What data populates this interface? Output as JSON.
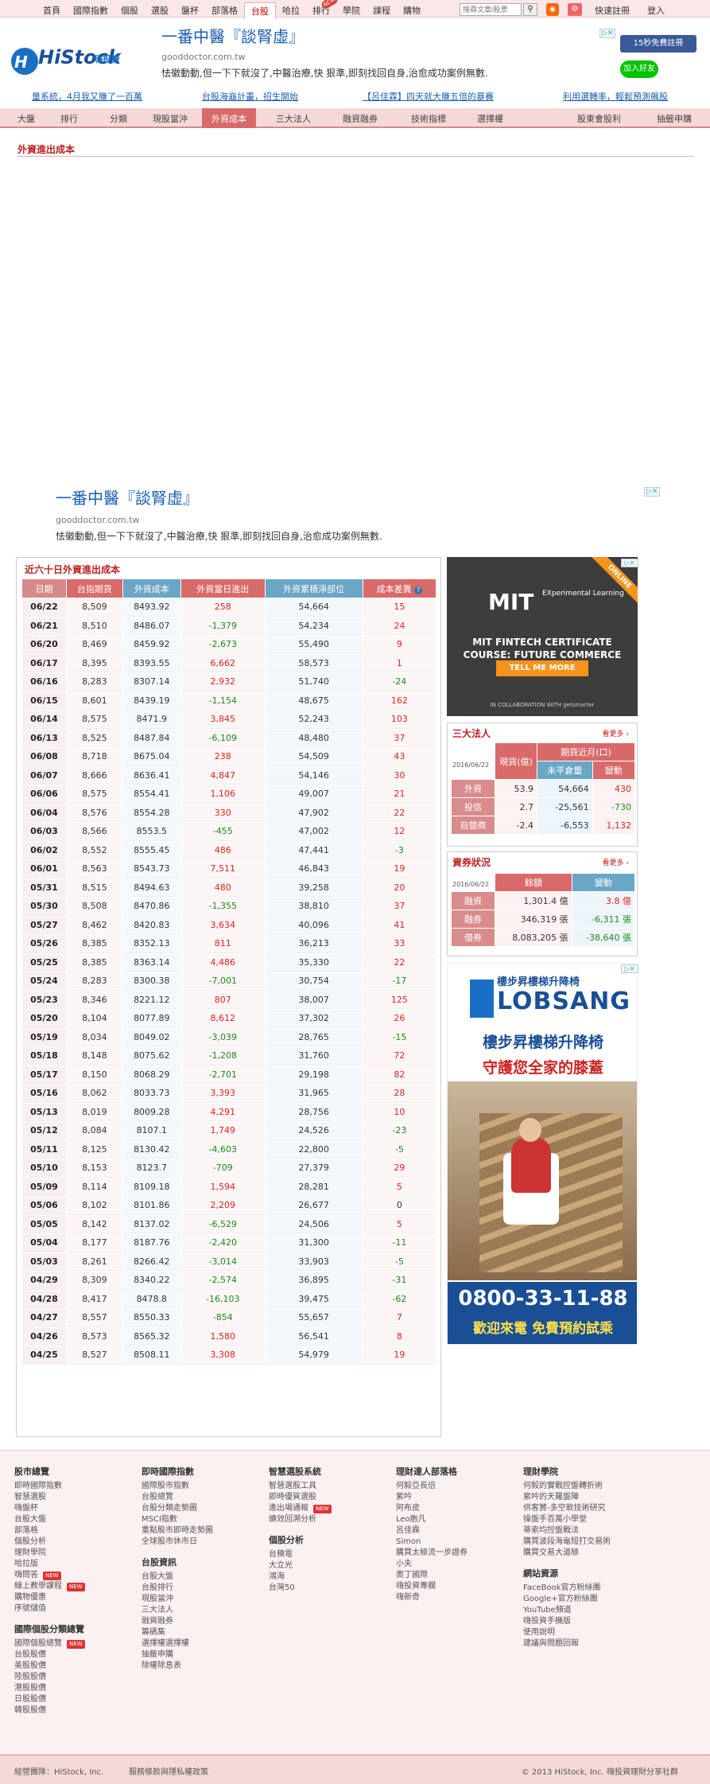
{
  "topnav": {
    "items": [
      "首頁",
      "國際指數",
      "個股",
      "選股",
      "盤杯",
      "部落格",
      "台股",
      "哈拉",
      "排行",
      "學院",
      "課程",
      "購物"
    ],
    "active_index": 6,
    "new_label": "NEW",
    "search_placeholder": "搜尋文章/股票",
    "register": "快速註冊",
    "login": "登入"
  },
  "logo": {
    "name": "HiStock",
    "sub": "嗨投資"
  },
  "ad_top": {
    "headline": "一番中醫『談腎虛』",
    "url": "gooddoctor.com.tw",
    "desc": "怯徽動動,但一下下就沒了,中醫治療,快 狠準,即刻找回自身,治愈成功案例無數."
  },
  "social": {
    "fb": "15秒免費註冊",
    "line": "加入好友"
  },
  "promos": [
    "量系統，4月我又賺了一百萬",
    "台股海龜計畫，招生開始",
    "【呂佳霖】四天就大賺五倍的暴賽",
    "利用選轉率，輕鬆預測飆股"
  ],
  "mainnav": [
    "大盤",
    "排行",
    "分類",
    "現股當沖",
    "外資成本",
    "三大法人",
    "融資融券",
    "技術指標",
    "選擇權",
    "股東會股利",
    "抽籤申購"
  ],
  "mainnav_active": 4,
  "page_title": "外資進出成本",
  "ad_mid": {
    "headline": "一番中醫『談腎虛』",
    "url": "gooddoctor.com.tw",
    "desc": "怯徽動動,但一下下就沒了,中醫治療,快 狠準,即刻找回自身,治愈成功案例無數."
  },
  "table": {
    "caption": "近六十日外資進出成本",
    "headers": [
      "日期",
      "台指期貨",
      "外資成本",
      "外資當日進出",
      "外資累積淨部位",
      "成本差異"
    ],
    "rows": [
      [
        "06/22",
        "8,509",
        "8493.92",
        "258",
        "54,664",
        "15"
      ],
      [
        "06/21",
        "8,510",
        "8486.07",
        "-1,379",
        "54,234",
        "24"
      ],
      [
        "06/20",
        "8,469",
        "8459.92",
        "-2,673",
        "55,490",
        "9"
      ],
      [
        "06/17",
        "8,395",
        "8393.55",
        "6,662",
        "58,573",
        "1"
      ],
      [
        "06/16",
        "8,283",
        "8307.14",
        "2,932",
        "51,740",
        "-24"
      ],
      [
        "06/15",
        "8,601",
        "8439.19",
        "-1,154",
        "48,675",
        "162"
      ],
      [
        "06/14",
        "8,575",
        "8471.9",
        "3,845",
        "52,243",
        "103"
      ],
      [
        "06/13",
        "8,525",
        "8487.84",
        "-6,109",
        "48,480",
        "37"
      ],
      [
        "06/08",
        "8,718",
        "8675.04",
        "238",
        "54,509",
        "43"
      ],
      [
        "06/07",
        "8,666",
        "8636.41",
        "4,847",
        "54,146",
        "30"
      ],
      [
        "06/06",
        "8,575",
        "8554.41",
        "1,106",
        "49,007",
        "21"
      ],
      [
        "06/04",
        "8,576",
        "8554.28",
        "330",
        "47,902",
        "22"
      ],
      [
        "06/03",
        "8,566",
        "8553.5",
        "-455",
        "47,002",
        "12"
      ],
      [
        "06/02",
        "8,552",
        "8555.45",
        "486",
        "47,441",
        "-3"
      ],
      [
        "06/01",
        "8,563",
        "8543.73",
        "7,511",
        "46,843",
        "19"
      ],
      [
        "05/31",
        "8,515",
        "8494.63",
        "480",
        "39,258",
        "20"
      ],
      [
        "05/30",
        "8,508",
        "8470.86",
        "-1,355",
        "38,810",
        "37"
      ],
      [
        "05/27",
        "8,462",
        "8420.83",
        "3,634",
        "40,096",
        "41"
      ],
      [
        "05/26",
        "8,385",
        "8352.13",
        "811",
        "36,213",
        "33"
      ],
      [
        "05/25",
        "8,385",
        "8363.14",
        "4,486",
        "35,330",
        "22"
      ],
      [
        "05/24",
        "8,283",
        "8300.38",
        "-7,001",
        "30,754",
        "-17"
      ],
      [
        "05/23",
        "8,346",
        "8221.12",
        "807",
        "38,007",
        "125"
      ],
      [
        "05/20",
        "8,104",
        "8077.89",
        "8,612",
        "37,302",
        "26"
      ],
      [
        "05/19",
        "8,034",
        "8049.02",
        "-3,039",
        "28,765",
        "-15"
      ],
      [
        "05/18",
        "8,148",
        "8075.62",
        "-1,208",
        "31,760",
        "72"
      ],
      [
        "05/17",
        "8,150",
        "8068.29",
        "-2,701",
        "29,198",
        "82"
      ],
      [
        "05/16",
        "8,062",
        "8033.73",
        "3,393",
        "31,965",
        "28"
      ],
      [
        "05/13",
        "8,019",
        "8009.28",
        "4,291",
        "28,756",
        "10"
      ],
      [
        "05/12",
        "8,084",
        "8107.1",
        "1,749",
        "24,526",
        "-23"
      ],
      [
        "05/11",
        "8,125",
        "8130.42",
        "-4,603",
        "22,800",
        "-5"
      ],
      [
        "05/10",
        "8,153",
        "8123.7",
        "-709",
        "27,379",
        "29"
      ],
      [
        "05/09",
        "8,114",
        "8109.18",
        "1,594",
        "28,281",
        "5"
      ],
      [
        "05/06",
        "8,102",
        "8101.86",
        "2,209",
        "26,677",
        "0"
      ],
      [
        "05/05",
        "8,142",
        "8137.02",
        "-6,529",
        "24,506",
        "5"
      ],
      [
        "05/04",
        "8,177",
        "8187.76",
        "-2,420",
        "31,300",
        "-11"
      ],
      [
        "05/03",
        "8,261",
        "8266.42",
        "-3,014",
        "33,903",
        "-5"
      ],
      [
        "04/29",
        "8,309",
        "8340.22",
        "-2,574",
        "36,895",
        "-31"
      ],
      [
        "04/28",
        "8,417",
        "8478.8",
        "-16,103",
        "39,475",
        "-62"
      ],
      [
        "04/27",
        "8,557",
        "8550.33",
        "-854",
        "55,657",
        "7"
      ],
      [
        "04/26",
        "8,573",
        "8565.32",
        "1,580",
        "56,541",
        "8"
      ],
      [
        "04/25",
        "8,527",
        "8508.11",
        "3,308",
        "54,979",
        "19"
      ]
    ]
  },
  "mit_ad": {
    "brand": "MIT",
    "exp": "EXperimental Learning",
    "line1": "MIT FINTECH CERTIFICATE",
    "line2": "COURSE: FUTURE COMMERCE",
    "button": "TELL ME MORE",
    "collab": "IN COLLABORATION WITH getsmarter",
    "ribbon": "ONLINE"
  },
  "three_inst": {
    "title": "三大法人",
    "more": "看更多",
    "date": "2016/06/22",
    "col_spot": "現貨(億)",
    "col_fut": "期貨近月(口)",
    "col_pos": "未平倉量",
    "col_chg": "變動",
    "rows": [
      {
        "label": "外資",
        "spot": "53.9",
        "pos": "54,664",
        "chg": "430"
      },
      {
        "label": "投信",
        "spot": "2.7",
        "pos": "-25,561",
        "chg": "-730"
      },
      {
        "label": "自營商",
        "spot": "-2.4",
        "pos": "-6,553",
        "chg": "1,132"
      }
    ]
  },
  "margin": {
    "title": "資券狀況",
    "more": "看更多",
    "date": "2016/06/22",
    "col_bal": "餘額",
    "col_chg": "變動",
    "rows": [
      {
        "label": "融資",
        "bal": "1,301.4 億",
        "chg": "3.8 億"
      },
      {
        "label": "融券",
        "bal": "346,319 張",
        "chg": "-6,311 張"
      },
      {
        "label": "借券",
        "bal": "8,083,205 張",
        "chg": "-38,640 張"
      }
    ]
  },
  "stair_ad": {
    "brand_top": "樓步昇樓梯升降椅",
    "brand": "LOBSANG",
    "h1": "樓步昇樓梯升降椅",
    "h2": "守護您全家的膝蓋",
    "phone": "0800-33-11-88",
    "cta": "歡迎來電 免費預約試乘"
  },
  "footer": {
    "col1": {
      "title": "股市總覽",
      "links": [
        "即時國際指數",
        "智慧選股",
        "嗨盤杯",
        "台股大盤",
        "部落格",
        "個股分析",
        "理財學院",
        "哈拉版",
        "嗨問答",
        "線上教學課程",
        "購物優惠",
        "序號儲值"
      ],
      "title2": "國際個股分類總覽",
      "links2": [
        "國際個股總覽",
        "台股股價",
        "美股股價",
        "陸股股價",
        "港股股價",
        "日股股價",
        "韓股股價"
      ]
    },
    "col2": {
      "title": "即時國際指數",
      "links": [
        "國際股市指數",
        "台股總覽",
        "台股分類走勢圖",
        "MSCI指數",
        "重點股市即時走勢圖",
        "全球股市休市日"
      ],
      "title2": "台股資訊",
      "links2": [
        "台股大盤",
        "台股排行",
        "現股當沖",
        "三大法人",
        "融資融券",
        "籌碼集",
        "選擇權選擇權",
        "抽籤申購",
        "除權除息表"
      ]
    },
    "col3": {
      "title": "智慧選股系統",
      "links": [
        "智慧選股工具",
        "即時優質選股",
        "進出場通報",
        "績效回溯分析"
      ],
      "title2": "個股分析",
      "links2": [
        "台積電",
        "大立光",
        "鴻海",
        "台灣50"
      ]
    },
    "col4": {
      "title": "理財達人部落格",
      "links": [
        "何毅亞長倍",
        "紫吟",
        "阿布皮",
        "Leo胞凡",
        "呂佳霖",
        "Simon",
        "購買太極流一步證券",
        "小夫",
        "奧丁國際",
        "嗨投資專欄",
        "嗨新奇"
      ]
    },
    "col5": {
      "title": "理財學院",
      "links": [
        "何毅的實戰控盤轉折術",
        "紫吟的天羅盤陣",
        "供客贊-多空軟技術研究",
        "操盤手百萬小學堂",
        "蒂索均控盤戰法",
        "購買波段海龜短打交易術",
        "購買交易大道極"
      ],
      "title2": "網站資源",
      "links2": [
        "FaceBook官方粉絲團",
        "Google+官方粉絲團",
        "YouTube頻道",
        "嗨投資手機版",
        "使用說明",
        "建議與問題回報"
      ]
    },
    "new_label": "NEW"
  },
  "copyright": {
    "left": "經營團隊：HiStock, Inc.",
    "mid": "服務條款與隱私權政策",
    "right": "© 2013 HiStock, Inc. 嗨投資理財分享社群"
  },
  "colors": {
    "positive": "#d22",
    "negative": "#1a8a1a",
    "accent": "#d96a6a",
    "blue": "#6aa6c6"
  }
}
